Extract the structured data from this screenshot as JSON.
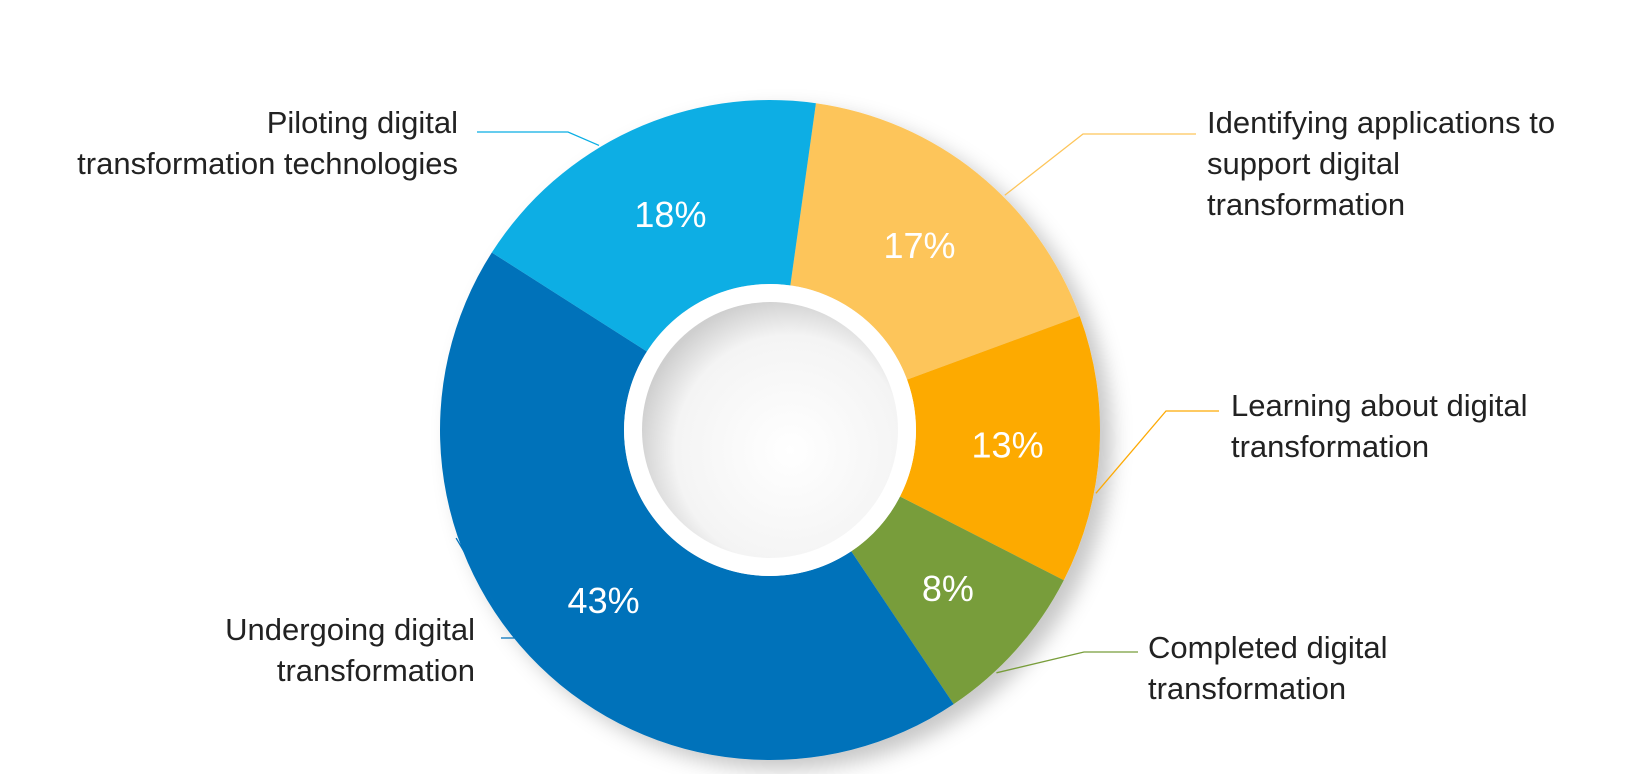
{
  "chart_data": {
    "type": "pie",
    "donut": true,
    "title": "",
    "slices": [
      {
        "label": [
          "Identifying applications to",
          "support digital",
          "transformation"
        ],
        "value": 17,
        "value_label": "17%",
        "color": "#FDC55A"
      },
      {
        "label": [
          "Learning about digital",
          "transformation"
        ],
        "value": 13,
        "value_label": "13%",
        "color": "#FDAA05"
      },
      {
        "label": [
          "Completed digital",
          "transformation"
        ],
        "value": 8,
        "value_label": "8%",
        "color": "#789D3A"
      },
      {
        "label": [
          "Undergoing digital",
          "transformation"
        ],
        "value": 43,
        "value_label": "43%",
        "color": "#0272BA"
      },
      {
        "label": [
          "Piloting digital",
          "transformation technologies"
        ],
        "value": 18,
        "value_label": "18%",
        "color": "#09AEE4"
      }
    ]
  }
}
